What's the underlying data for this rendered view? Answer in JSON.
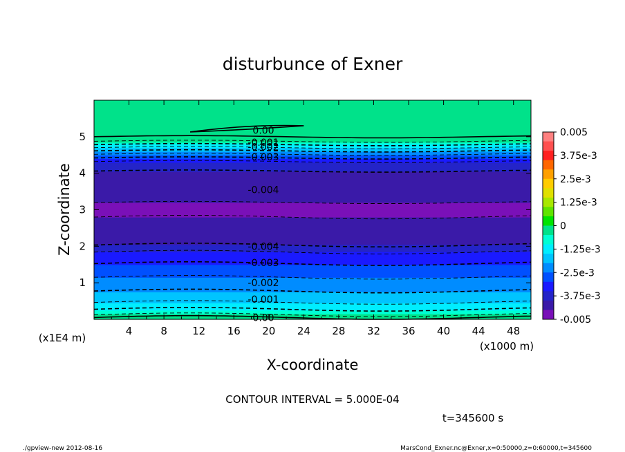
{
  "chart_data": {
    "type": "heatmap",
    "title": "disturbunce of Exner",
    "xlabel": "X-coordinate",
    "ylabel": "Z-coordinate",
    "x_unit_label": "(x1000 m)",
    "y_unit_label": "(x1E4 m)",
    "xlim": [
      0,
      50
    ],
    "ylim": [
      0,
      6
    ],
    "x_ticks": [
      4,
      8,
      12,
      16,
      20,
      24,
      28,
      32,
      36,
      40,
      44,
      48
    ],
    "y_ticks": [
      1,
      2,
      3,
      4,
      5
    ],
    "colorbar": {
      "range": [
        -0.005,
        0.005
      ],
      "tick_labels": [
        "0.005",
        "3.75e-3",
        "2.5e-3",
        "1.25e-3",
        "0",
        "-1.25e-3",
        "-2.5e-3",
        "-3.75e-3",
        "-0.005"
      ],
      "tick_values": [
        0.005,
        0.00375,
        0.0025,
        0.00125,
        0,
        -0.00125,
        -0.0025,
        -0.00375,
        -0.005
      ],
      "colors": [
        "#ff8080",
        "#ff5050",
        "#ff2020",
        "#ff6600",
        "#ffa000",
        "#ffcc00",
        "#e0e000",
        "#a8e800",
        "#60e400",
        "#00e400",
        "#00e28a",
        "#00ffd4",
        "#00eeff",
        "#00c4ff",
        "#008cff",
        "#0050ff",
        "#1a1aff",
        "#2424c8",
        "#3a1aa8",
        "#7a10b8"
      ]
    },
    "profile_z": [
      0.0,
      0.05,
      0.1,
      0.2,
      0.35,
      0.5,
      0.7,
      1.0,
      1.3,
      1.6,
      1.9,
      2.1,
      2.4,
      2.8,
      3.2,
      3.6,
      4.0,
      4.3,
      4.4,
      4.5,
      4.65,
      4.8,
      4.95,
      5.0,
      6.0
    ],
    "profile_value": [
      0.0,
      0.0,
      -0.0004,
      -0.0008,
      -0.0012,
      -0.0016,
      -0.0019,
      -0.0023,
      -0.0027,
      -0.0031,
      -0.0036,
      -0.0042,
      -0.0044,
      -0.0045,
      -0.0045,
      -0.0043,
      -0.0041,
      -0.0036,
      -0.0031,
      -0.0026,
      -0.0018,
      -0.0009,
      -0.0001,
      0.0,
      0.0
    ],
    "contour_labels": [
      "0.00",
      "-0.001",
      "-0.002",
      "-0.003",
      "-0.004",
      "-0.004",
      "-0.003",
      "-0.002",
      "-0.001",
      "0.00"
    ],
    "annotations": {
      "contour_interval": "CONTOUR INTERVAL = 5.000E-04",
      "time": "t=345600 s"
    }
  },
  "footer": {
    "left": "./gpview-new 2012-08-16",
    "right": "MarsCond_Exner.nc@Exner,x=0:50000,z=0:60000,t=345600"
  }
}
